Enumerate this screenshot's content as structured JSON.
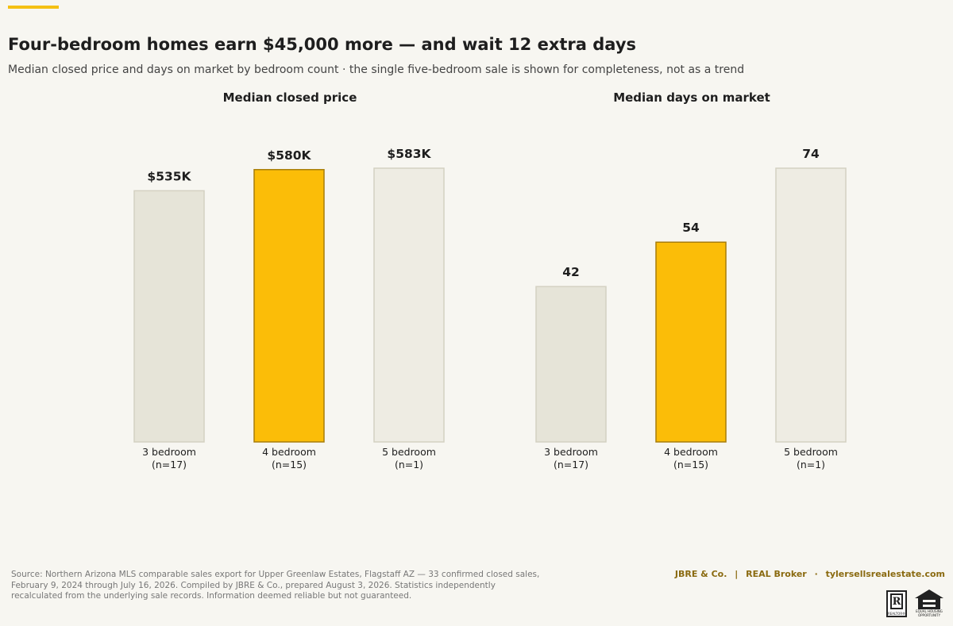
{
  "header": {
    "headline": "Four-bedroom homes earn $45,000 more — and wait 12 extra days",
    "subhead": "Median closed price and days on market by bedroom count · the single five-bedroom sale is shown for completeness, not as a trend"
  },
  "colors": {
    "highlight_fill": "#fbbd08",
    "highlight_stroke": "#a77d0a",
    "base_fill_a": "#e6e4d8",
    "base_fill_b": "#eeece3",
    "base_stroke": "#d4d1c2",
    "accent_bar": "#f4c013",
    "brand_text": "#8a6a10"
  },
  "chart_data": [
    {
      "type": "bar",
      "title": "Median closed price",
      "categories": [
        "3 bedroom",
        "4 bedroom",
        "5 bedroom"
      ],
      "sample_sizes": [
        "(n=17)",
        "(n=15)",
        "(n=1)"
      ],
      "values": [
        535000,
        580000,
        583000
      ],
      "value_labels": [
        "$535K",
        "$580K",
        "$583K"
      ],
      "ylim": [
        0,
        583000
      ],
      "highlight_index": 1,
      "grid": false,
      "xlabel": "",
      "ylabel": ""
    },
    {
      "type": "bar",
      "title": "Median days on market",
      "categories": [
        "3 bedroom",
        "4 bedroom",
        "5 bedroom"
      ],
      "sample_sizes": [
        "(n=17)",
        "(n=15)",
        "(n=1)"
      ],
      "values": [
        42,
        54,
        74
      ],
      "value_labels": [
        "42",
        "54",
        "74"
      ],
      "ylim": [
        0,
        74
      ],
      "highlight_index": 1,
      "grid": false,
      "xlabel": "",
      "ylabel": ""
    }
  ],
  "footer": {
    "source_lines": [
      "Source: Northern Arizona MLS comparable sales export for Upper Greenlaw Estates, Flagstaff AZ — 33 confirmed closed sales,",
      "February 9, 2024 through July 16, 2026. Compiled by JBRE & Co., prepared August 3, 2026. Statistics independently",
      "recalculated from the underlying sale records. Information deemed reliable but not guaranteed."
    ],
    "brand_name": "JBRE & Co.",
    "brand_sep_1": "|",
    "brokerage": "REAL Broker",
    "brand_sep_2": "·",
    "website": "tylersellsrealestate.com",
    "realtor_logo_letter": "R",
    "realtor_logo_text": "REALTOR®",
    "eho_logo_text": "EQUAL HOUSING OPPORTUNITY"
  }
}
